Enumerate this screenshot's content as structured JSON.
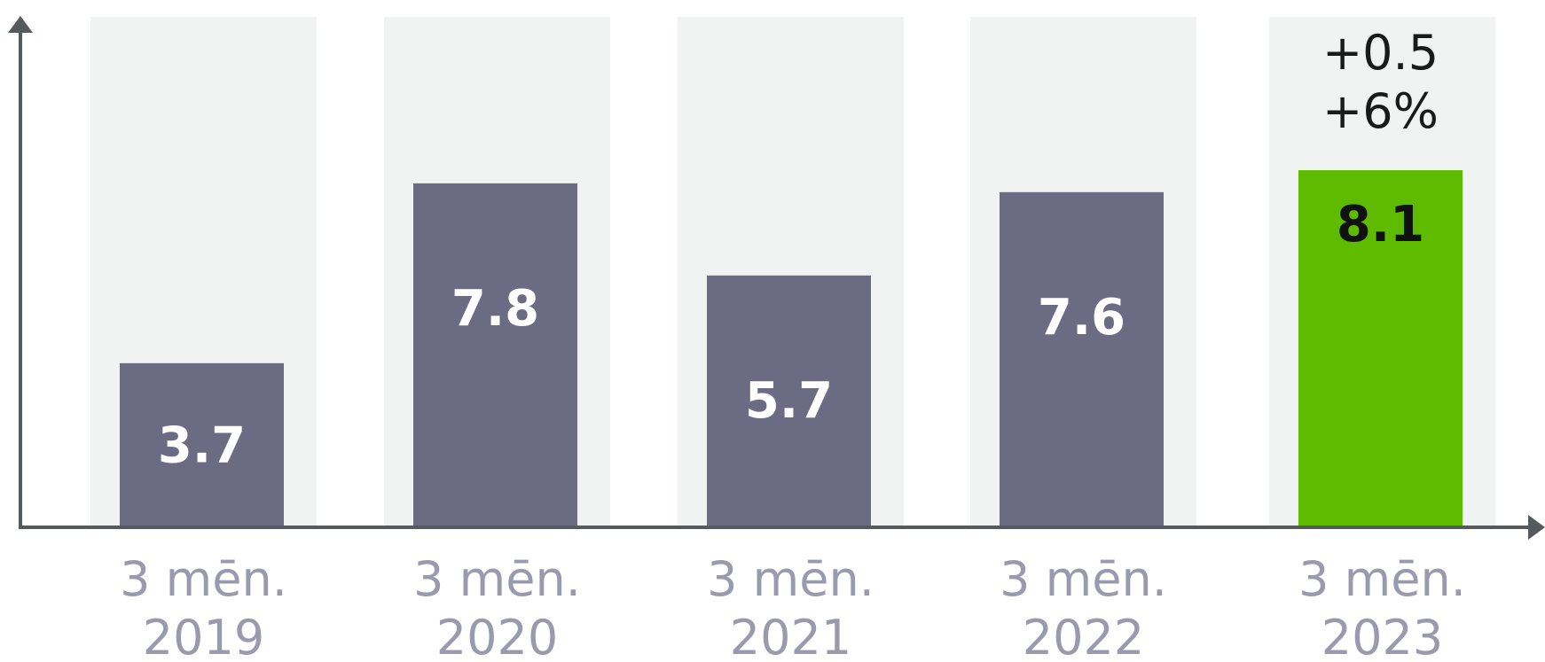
{
  "chart_data": {
    "type": "bar",
    "categories": [
      [
        "3 mēn.",
        "2019"
      ],
      [
        "3 mēn.",
        "2020"
      ],
      [
        "3 mēn.",
        "2021"
      ],
      [
        "3 mēn.",
        "2022"
      ],
      [
        "3 mēn.",
        "2023"
      ]
    ],
    "values": [
      3.7,
      7.8,
      5.7,
      7.6,
      8.1
    ],
    "value_labels": [
      "3.7",
      "7.8",
      "5.7",
      "7.6",
      "8.1"
    ],
    "highlight_index": 4,
    "annotation": [
      "+0.5",
      "+6%"
    ],
    "title": "",
    "xlabel": "",
    "ylabel": "",
    "ylim": [
      0,
      12
    ],
    "grid": false,
    "legend": "none",
    "colors": {
      "bar": "#6b6b84",
      "highlight": "#5fbb00",
      "column_bg": "#f1f3f2",
      "axis": "#555a5c",
      "value_text": "#ffffff",
      "highlight_text": "#111111",
      "category_text": "#9a9aae"
    }
  }
}
